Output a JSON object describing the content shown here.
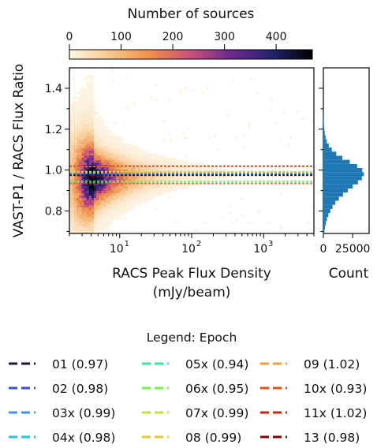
{
  "chart_data": [
    {
      "type": "heatmap",
      "title": "",
      "xlabel": [
        "RACS Peak Flux Density",
        "(mJy/beam)"
      ],
      "ylabel": "VAST-P1 / RACS Flux Ratio",
      "x_scale": "log",
      "xlim": [
        2,
        5000
      ],
      "ylim": [
        0.69,
        1.5
      ],
      "x_ticks": [
        {
          "value": 10,
          "label": "10",
          "exp": "1"
        },
        {
          "value": 100,
          "label": "10",
          "exp": "2"
        },
        {
          "value": 1000,
          "label": "10",
          "exp": "3"
        }
      ],
      "y_ticks": [
        {
          "value": 0.8,
          "label": "0.8"
        },
        {
          "value": 1.0,
          "label": "1.0"
        },
        {
          "value": 1.2,
          "label": "1.2"
        },
        {
          "value": 1.4,
          "label": "1.4"
        }
      ],
      "density_peak": {
        "x": 4.5,
        "y": 0.955
      },
      "grid": false,
      "reference_lines": [
        {
          "epoch": "01",
          "ratio": 0.97,
          "color": "#2a1240"
        },
        {
          "epoch": "02",
          "ratio": 0.98,
          "color": "#3f4fc8"
        },
        {
          "epoch": "03x",
          "ratio": 0.99,
          "color": "#3e95f5"
        },
        {
          "epoch": "04x",
          "ratio": 0.98,
          "color": "#1fc6d6"
        },
        {
          "epoch": "05x",
          "ratio": 0.94,
          "color": "#32eaa0"
        },
        {
          "epoch": "06x",
          "ratio": 0.95,
          "color": "#7af255"
        },
        {
          "epoch": "07x",
          "ratio": 0.99,
          "color": "#bde63b"
        },
        {
          "epoch": "08",
          "ratio": 0.99,
          "color": "#e8c83a"
        },
        {
          "epoch": "09",
          "ratio": 1.02,
          "color": "#ef9a3c"
        },
        {
          "epoch": "10x",
          "ratio": 0.93,
          "color": "#e5541c"
        },
        {
          "epoch": "11x",
          "ratio": 1.02,
          "color": "#c32b0f"
        },
        {
          "epoch": "13",
          "ratio": 0.98,
          "color": "#7a0808"
        }
      ]
    },
    {
      "type": "bar",
      "orientation": "horizontal",
      "xlabel": "Count",
      "x_ticks": [
        {
          "value": 0,
          "label": "0"
        },
        {
          "value": 25000,
          "label": "25000"
        }
      ],
      "xlim": [
        0,
        39000
      ],
      "bar_color": "#1f77b4",
      "bin_edges": [
        0.69,
        0.71,
        0.73,
        0.75,
        0.77,
        0.79,
        0.81,
        0.83,
        0.85,
        0.87,
        0.89,
        0.91,
        0.93,
        0.95,
        0.97,
        0.99,
        1.01,
        1.03,
        1.05,
        1.07,
        1.09,
        1.11,
        1.13,
        1.15,
        1.17,
        1.19,
        1.21,
        1.23,
        1.25,
        1.27,
        1.29,
        1.31
      ],
      "counts": [
        900,
        1400,
        2100,
        3000,
        4300,
        5900,
        7800,
        10200,
        13200,
        16700,
        20800,
        25100,
        29500,
        32800,
        34500,
        33200,
        28800,
        22500,
        16200,
        11000,
        7200,
        4600,
        2900,
        1900,
        1200,
        800,
        500,
        350,
        230,
        150,
        90
      ]
    }
  ],
  "colorbar": {
    "label": "Number of sources",
    "ticks": [
      {
        "value": 0,
        "label": "0"
      },
      {
        "value": 100,
        "label": "100"
      },
      {
        "value": 200,
        "label": "200"
      },
      {
        "value": 300,
        "label": "300"
      },
      {
        "value": 400,
        "label": "400"
      }
    ],
    "range": [
      0,
      470
    ],
    "colormap_stops": [
      "#fdf6e8",
      "#f7c890",
      "#f0904c",
      "#c8507a",
      "#6a2a8c",
      "#24236e",
      "#000000"
    ]
  },
  "legend": {
    "title": "Legend: Epoch",
    "placement": "bottom",
    "entries": [
      {
        "label": "01 (0.97)",
        "color": "#2a1240"
      },
      {
        "label": "02 (0.98)",
        "color": "#3f4fc8"
      },
      {
        "label": "03x (0.99)",
        "color": "#3e95f5"
      },
      {
        "label": "04x (0.98)",
        "color": "#1fc6d6"
      },
      {
        "label": "05x (0.94)",
        "color": "#32eaa0"
      },
      {
        "label": "06x (0.95)",
        "color": "#7af255"
      },
      {
        "label": "07x (0.99)",
        "color": "#bde63b"
      },
      {
        "label": "08 (0.99)",
        "color": "#e8c83a"
      },
      {
        "label": "09 (1.02)",
        "color": "#ef9a3c"
      },
      {
        "label": "10x (0.93)",
        "color": "#e5541c"
      },
      {
        "label": "11x (1.02)",
        "color": "#c32b0f"
      },
      {
        "label": "13 (0.98)",
        "color": "#7a0808"
      }
    ]
  }
}
